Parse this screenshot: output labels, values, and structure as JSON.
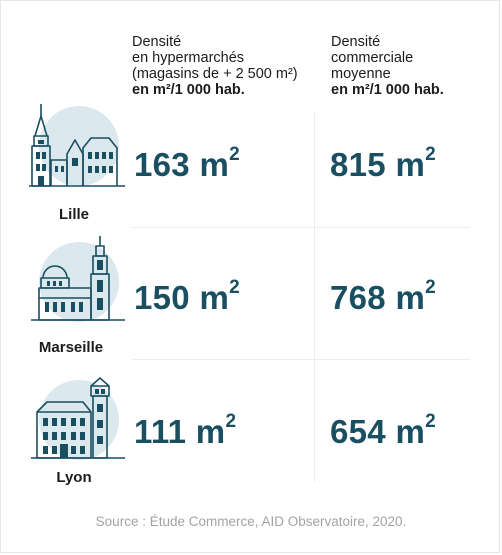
{
  "headers": {
    "col1": {
      "line1": "Densité",
      "line2": "en hypermarchés",
      "line3": "(magasins de + 2 500 m²)",
      "unit": "en m²/1 000 hab."
    },
    "col2": {
      "line1": "Densité",
      "line2": "commerciale",
      "line3": "moyenne",
      "unit": "en m²/1 000 hab."
    }
  },
  "value_unit": "m",
  "value_exponent": "2",
  "source": "Source : Étude Commerce, AID Observatoire, 2020.",
  "colors": {
    "value": "#1a4f62",
    "circle": "#dbe8ee",
    "line": "#1a4f62"
  },
  "chart_data": {
    "type": "table",
    "categories": [
      "Lille",
      "Marseille",
      "Lyon"
    ],
    "columns": [
      "Densité en hypermarchés (magasins de + 2 500 m²) en m²/1 000 hab.",
      "Densité commerciale moyenne en m²/1 000 hab."
    ],
    "rows": [
      {
        "city": "Lille",
        "hypermarches": "163",
        "moyenne": "815",
        "icon": "lille-belfry-icon"
      },
      {
        "city": "Marseille",
        "hypermarches": "150",
        "moyenne": "768",
        "icon": "marseille-basilica-icon"
      },
      {
        "city": "Lyon",
        "hypermarches": "111",
        "moyenne": "654",
        "icon": "lyon-building-icon"
      }
    ]
  }
}
